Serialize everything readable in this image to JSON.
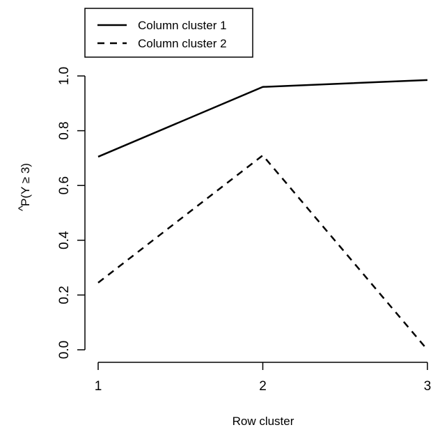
{
  "chart_data": {
    "type": "line",
    "title": "",
    "xlabel": "Row cluster",
    "ylabel": "P(Y ≥ 3)",
    "ylabel_hat": "^",
    "x": [
      1,
      2,
      3
    ],
    "x_ticks": [
      "1",
      "2",
      "3"
    ],
    "xlim": [
      1,
      3
    ],
    "ylim": [
      0,
      1
    ],
    "y_ticks": [
      "0.0",
      "0.2",
      "0.4",
      "0.6",
      "0.8",
      "1.0"
    ],
    "grid": false,
    "legend_position": "top-left",
    "series": [
      {
        "name": "Column cluster 1",
        "values": [
          0.705,
          0.96,
          0.985
        ],
        "line_style": "solid",
        "color": "#000000"
      },
      {
        "name": "Column cluster 2",
        "values": [
          0.245,
          0.71,
          0.0
        ],
        "line_style": "dashed",
        "color": "#000000"
      }
    ]
  }
}
